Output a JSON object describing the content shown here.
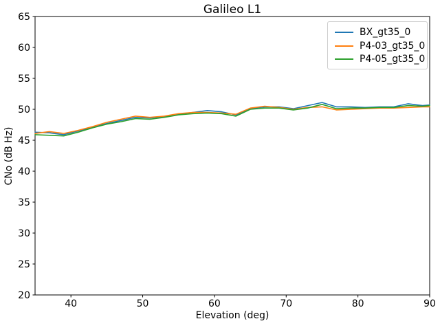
{
  "chart_data": {
    "type": "line",
    "title": "Galileo L1",
    "xlabel": "Elevation (deg)",
    "ylabel": "CNo (dB Hz)",
    "xlim": [
      35,
      90
    ],
    "ylim": [
      20,
      65
    ],
    "xticks": [
      40,
      50,
      60,
      70,
      80,
      90
    ],
    "yticks": [
      20,
      25,
      30,
      35,
      40,
      45,
      50,
      55,
      60,
      65
    ],
    "grid": false,
    "legend_position": "upper right",
    "x": [
      35,
      37,
      39,
      41,
      43,
      45,
      47,
      49,
      51,
      53,
      55,
      57,
      59,
      61,
      63,
      65,
      67,
      69,
      71,
      73,
      75,
      77,
      79,
      81,
      83,
      85,
      87,
      89,
      90
    ],
    "series": [
      {
        "name": "BX_gt35_0",
        "color": "#1f77b4",
        "values": [
          46.3,
          46.2,
          45.9,
          46.5,
          47.1,
          47.7,
          48.2,
          48.7,
          48.6,
          48.8,
          49.2,
          49.5,
          49.8,
          49.6,
          49.1,
          50.1,
          50.4,
          50.4,
          50.1,
          50.6,
          51.1,
          50.4,
          50.4,
          50.3,
          50.4,
          50.4,
          50.9,
          50.6,
          50.7
        ]
      },
      {
        "name": "P4-03_gt35_0",
        "color": "#ff7f0e",
        "values": [
          46.1,
          46.4,
          46.1,
          46.6,
          47.2,
          47.9,
          48.4,
          48.9,
          48.7,
          48.9,
          49.3,
          49.5,
          49.5,
          49.4,
          49.2,
          50.2,
          50.5,
          50.3,
          50.0,
          50.3,
          50.4,
          49.9,
          50.0,
          50.1,
          50.2,
          50.2,
          50.3,
          50.4,
          50.4
        ]
      },
      {
        "name": "P4-05_gt35_0",
        "color": "#2ca02c",
        "values": [
          45.9,
          45.8,
          45.7,
          46.3,
          47.0,
          47.6,
          48.0,
          48.5,
          48.4,
          48.7,
          49.1,
          49.3,
          49.4,
          49.3,
          48.9,
          50.0,
          50.2,
          50.2,
          49.9,
          50.2,
          50.8,
          50.1,
          50.2,
          50.2,
          50.3,
          50.3,
          50.6,
          50.5,
          50.6
        ]
      }
    ]
  }
}
